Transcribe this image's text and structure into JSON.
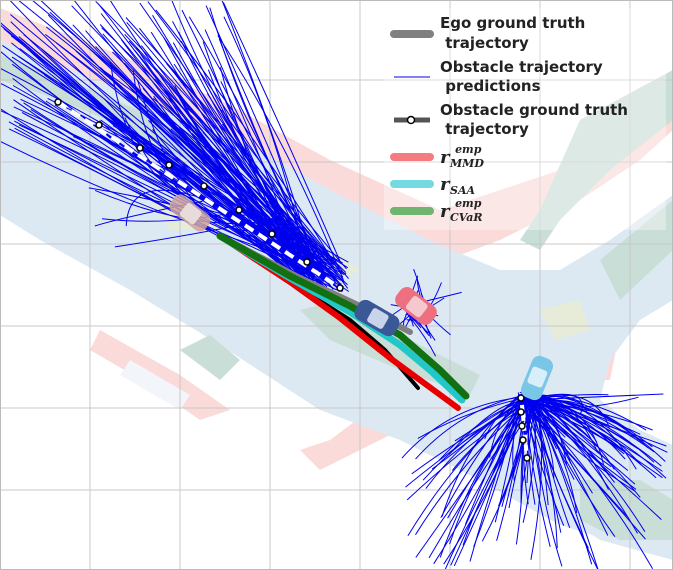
{
  "legend": {
    "ego_gt": {
      "line1": "Ego ground truth",
      "line2": " trajectory",
      "color": "#808080"
    },
    "obs_pred": {
      "line1": "Obstacle trajectory",
      "line2": " predictions",
      "color": "#0000ee"
    },
    "obs_gt": {
      "line1": "Obstacle ground truth",
      "line2": " trajectory",
      "color": "#555555"
    },
    "r_mmd": {
      "base": "r",
      "sub": "MMD",
      "sup": "emp",
      "color": "#f47c80"
    },
    "r_saa": {
      "base": "r",
      "sub": "SAA",
      "sup": "",
      "color": "#74d9e0"
    },
    "r_cvar": {
      "base": "r",
      "sub": "CVaR",
      "sup": "emp",
      "color": "#6fb56f"
    }
  },
  "colors": {
    "road": "#dde9f2",
    "sidewalk_pink": "#fbdada",
    "median_green": "#c9ded6",
    "grid": "#c8c8c8",
    "prediction_blue": "#0000ee",
    "ego_gt": "#808080",
    "mmd_red": "#e80000",
    "saa_cyan": "#22c8c8",
    "cvar_green": "#127012",
    "ego_black": "#000000"
  },
  "vehicles": {
    "ego": {
      "icon": "car-icon",
      "color": "#3a5796"
    },
    "obstacle_pink": {
      "icon": "car-icon",
      "color": "#ee7080"
    },
    "obstacle_cyan": {
      "icon": "car-icon",
      "color": "#79c6e6"
    },
    "parked": {
      "icon": "car-icon",
      "color": "#cea39f"
    }
  }
}
